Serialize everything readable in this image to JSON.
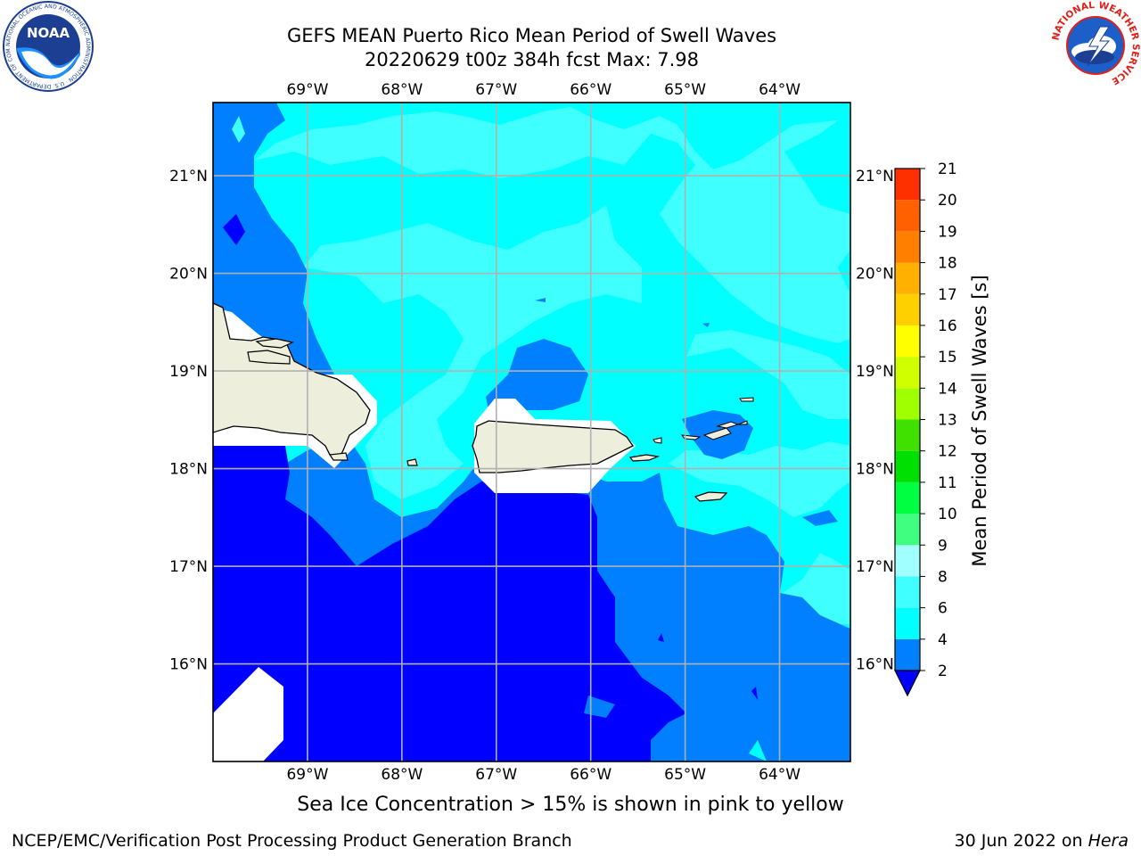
{
  "title": {
    "line1": "GEFS MEAN Puerto Rico Mean Period of Swell Waves",
    "line2": "20220629 t00z 384h fcst   Max: 7.98"
  },
  "map": {
    "lon_range": [
      -70.0,
      -63.25
    ],
    "lat_range": [
      15.0,
      21.75
    ],
    "lon_ticks": [
      -69,
      -68,
      -67,
      -66,
      -65,
      -64
    ],
    "lat_ticks": [
      16,
      17,
      18,
      19,
      20,
      21
    ],
    "lon_tick_labels": [
      "69°W",
      "68°W",
      "67°W",
      "66°W",
      "65°W",
      "64°W"
    ],
    "lat_tick_labels": [
      "16°N",
      "17°N",
      "18°N",
      "19°N",
      "20°N",
      "21°N"
    ],
    "gridlines": true,
    "land_color": "#eeeedd",
    "coastline_color": "#000000"
  },
  "colorbar": {
    "label": "Mean Period of Swell Waves [s]",
    "levels": [
      2,
      4,
      6,
      8,
      9,
      10,
      11,
      12,
      13,
      14,
      15,
      16,
      17,
      18,
      19,
      20,
      21
    ],
    "colors": [
      "#0000ff",
      "#0080ff",
      "#00ffff",
      "#40ffff",
      "#a0ffff",
      "#40ff80",
      "#00ff40",
      "#00e000",
      "#40e000",
      "#a0ff00",
      "#d0ff00",
      "#ffff00",
      "#ffd000",
      "#ffb000",
      "#ff8000",
      "#ff6000",
      "#ff3000",
      "#ff0000"
    ],
    "extend": "min"
  },
  "note": "Sea Ice Concentration > 15% is shown in pink to yellow",
  "footer": {
    "left": "NCEP/EMC/Verification Post Processing Product Generation Branch",
    "right_prefix": "30 Jun 2022 on ",
    "right_machine": "Hera"
  },
  "logos": {
    "noaa": "NOAA",
    "noaa_ring": "NATIONAL OCEANIC AND ATMOSPHERIC ADMINISTRATION · U.S. DEPARTMENT OF COMMERCE",
    "nws_ring": "NATIONAL WEATHER SERVICE"
  }
}
